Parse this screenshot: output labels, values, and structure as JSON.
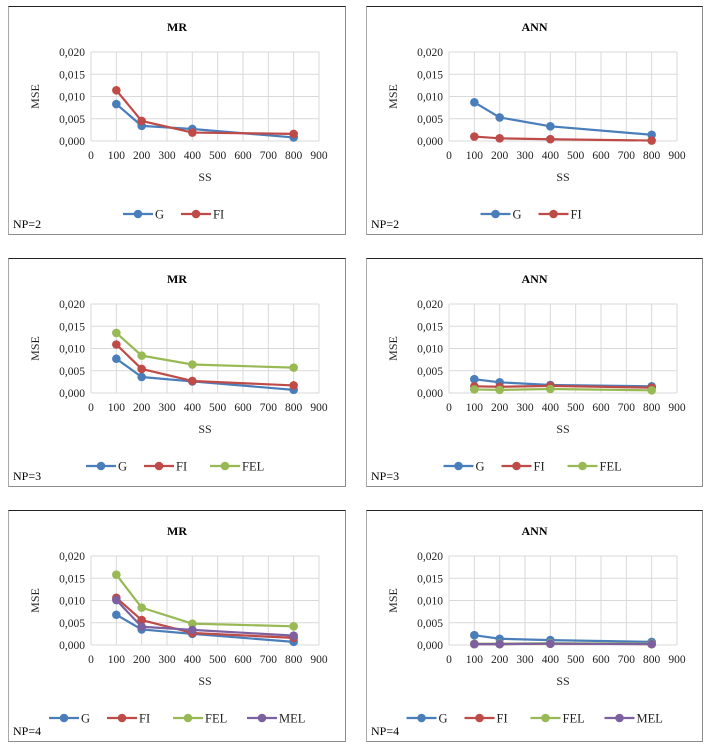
{
  "colors": {
    "G": "#4a7ebb",
    "FI": "#be4b48",
    "FEL": "#98b954",
    "MEL": "#7d60a0",
    "grid": "#d9d9d9"
  },
  "chart_data": [
    {
      "type": "line",
      "title": "MR",
      "label": "NP=2",
      "xlabel": "SS",
      "ylabel": "MSE",
      "xlim": [
        0,
        900
      ],
      "ylim": [
        0,
        0.02
      ],
      "grid": true,
      "legend": "bottom",
      "xticks": [
        "0",
        "100",
        "200",
        "300",
        "400",
        "500",
        "600",
        "700",
        "800",
        "900"
      ],
      "yticks": [
        "0,000",
        "0,005",
        "0,010",
        "0,015",
        "0,020"
      ],
      "x": [
        100,
        200,
        400,
        800
      ],
      "series": [
        {
          "name": "G",
          "values": [
            0.0083,
            0.0034,
            0.0027,
            0.0008
          ]
        },
        {
          "name": "FI",
          "values": [
            0.0114,
            0.0045,
            0.0019,
            0.0016
          ]
        }
      ]
    },
    {
      "type": "line",
      "title": "ANN",
      "label": "NP=2",
      "xlabel": "SS",
      "ylabel": "MSE",
      "xlim": [
        0,
        900
      ],
      "ylim": [
        0,
        0.02
      ],
      "grid": true,
      "legend": "bottom",
      "xticks": [
        "0",
        "100",
        "200",
        "300",
        "400",
        "500",
        "600",
        "700",
        "800",
        "900"
      ],
      "yticks": [
        "0,000",
        "0,005",
        "0,010",
        "0,015",
        "0,020"
      ],
      "x": [
        100,
        200,
        400,
        800
      ],
      "series": [
        {
          "name": "G",
          "values": [
            0.0087,
            0.0053,
            0.0033,
            0.0014
          ]
        },
        {
          "name": "FI",
          "values": [
            0.001,
            0.0006,
            0.0004,
            0.0001
          ]
        }
      ]
    },
    {
      "type": "line",
      "title": "MR",
      "label": "NP=3",
      "xlabel": "SS",
      "ylabel": "MSE",
      "xlim": [
        0,
        900
      ],
      "ylim": [
        0,
        0.02
      ],
      "grid": true,
      "legend": "bottom",
      "xticks": [
        "0",
        "100",
        "200",
        "300",
        "400",
        "500",
        "600",
        "700",
        "800",
        "900"
      ],
      "yticks": [
        "0,000",
        "0,005",
        "0,010",
        "0,015",
        "0,020"
      ],
      "x": [
        100,
        200,
        400,
        800
      ],
      "series": [
        {
          "name": "G",
          "values": [
            0.0077,
            0.0036,
            0.0026,
            0.0007
          ]
        },
        {
          "name": "FI",
          "values": [
            0.0109,
            0.0054,
            0.0027,
            0.0017
          ]
        },
        {
          "name": "FEL",
          "values": [
            0.0135,
            0.0084,
            0.0064,
            0.0057
          ]
        }
      ]
    },
    {
      "type": "line",
      "title": "ANN",
      "label": "NP=3",
      "xlabel": "SS",
      "ylabel": "MSE",
      "xlim": [
        0,
        900
      ],
      "ylim": [
        0,
        0.02
      ],
      "grid": true,
      "legend": "bottom",
      "xticks": [
        "0",
        "100",
        "200",
        "300",
        "400",
        "500",
        "600",
        "700",
        "800",
        "900"
      ],
      "yticks": [
        "0,000",
        "0,005",
        "0,010",
        "0,015",
        "0,020"
      ],
      "x": [
        100,
        200,
        400,
        800
      ],
      "series": [
        {
          "name": "G",
          "values": [
            0.0031,
            0.0024,
            0.0018,
            0.0015
          ]
        },
        {
          "name": "FI",
          "values": [
            0.0015,
            0.0014,
            0.0016,
            0.0012
          ]
        },
        {
          "name": "FEL",
          "values": [
            0.0008,
            0.0007,
            0.0009,
            0.0006
          ]
        }
      ]
    },
    {
      "type": "line",
      "title": "MR",
      "label": "NP=4",
      "xlabel": "SS",
      "ylabel": "MSE",
      "xlim": [
        0,
        900
      ],
      "ylim": [
        0,
        0.02
      ],
      "grid": true,
      "legend": "bottom",
      "xticks": [
        "0",
        "100",
        "200",
        "300",
        "400",
        "500",
        "600",
        "700",
        "800",
        "900"
      ],
      "yticks": [
        "0,000",
        "0,005",
        "0,010",
        "0,015",
        "0,020"
      ],
      "x": [
        100,
        200,
        400,
        800
      ],
      "series": [
        {
          "name": "G",
          "values": [
            0.0068,
            0.0035,
            0.0025,
            0.0007
          ]
        },
        {
          "name": "FI",
          "values": [
            0.0106,
            0.0056,
            0.0027,
            0.0016
          ]
        },
        {
          "name": "FEL",
          "values": [
            0.0158,
            0.0084,
            0.0048,
            0.0042
          ]
        },
        {
          "name": "MEL",
          "values": [
            0.0101,
            0.0041,
            0.0034,
            0.0021
          ]
        }
      ]
    },
    {
      "type": "line",
      "title": "ANN",
      "label": "NP=4",
      "xlabel": "SS",
      "ylabel": "MSE",
      "xlim": [
        0,
        900
      ],
      "ylim": [
        0,
        0.02
      ],
      "grid": true,
      "legend": "bottom",
      "xticks": [
        "0",
        "100",
        "200",
        "300",
        "400",
        "500",
        "600",
        "700",
        "800",
        "900"
      ],
      "yticks": [
        "0,000",
        "0,005",
        "0,010",
        "0,015",
        "0,020"
      ],
      "x": [
        100,
        200,
        400,
        800
      ],
      "series": [
        {
          "name": "G",
          "values": [
            0.0022,
            0.0014,
            0.0011,
            0.0007
          ]
        },
        {
          "name": "FI",
          "values": [
            0.0002,
            0.0002,
            0.0003,
            0.0002
          ]
        },
        {
          "name": "FEL",
          "values": [
            0.0003,
            0.0003,
            0.0004,
            0.0003
          ]
        },
        {
          "name": "MEL",
          "values": [
            0.0002,
            0.0002,
            0.0003,
            0.0002
          ]
        }
      ]
    }
  ]
}
